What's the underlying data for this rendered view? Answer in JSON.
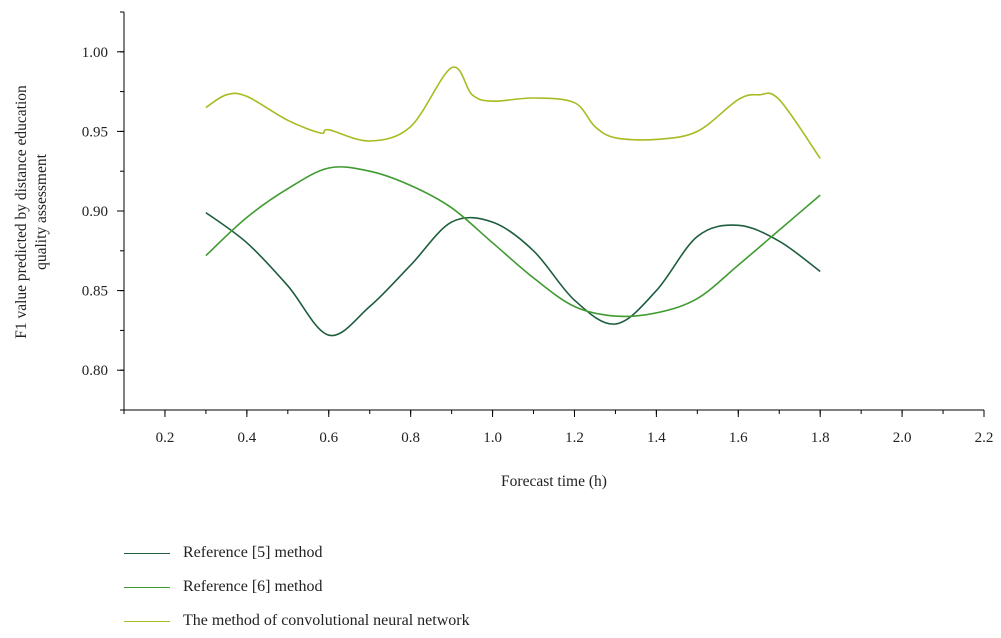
{
  "chart_data": {
    "type": "line",
    "xlabel": "Forecast time (h)",
    "ylabel_lines": [
      "F1 value predicted by distance education",
      "quality assessment"
    ],
    "xlim": [
      0.1,
      2.2
    ],
    "ylim": [
      0.775,
      1.025
    ],
    "xticks": [
      0.2,
      0.4,
      0.6,
      0.8,
      1.0,
      1.2,
      1.4,
      1.6,
      1.8,
      2.0,
      2.2
    ],
    "xtick_labels": [
      "0.2",
      "0.4",
      "0.6",
      "0.8",
      "1.0",
      "1.2",
      "1.4",
      "1.6",
      "1.8",
      "2.0",
      "2.2"
    ],
    "yticks": [
      0.8,
      0.85,
      0.9,
      0.95,
      1.0
    ],
    "ytick_labels": [
      "0.80",
      "0.85",
      "0.90",
      "0.95",
      "1.00"
    ],
    "grid": false,
    "legend_position": "bottom",
    "series": [
      {
        "name": "Reference [5] method",
        "color": "#1e5e3e",
        "points": [
          [
            0.3,
            0.899
          ],
          [
            0.4,
            0.88
          ],
          [
            0.5,
            0.853
          ],
          [
            0.6,
            0.822
          ],
          [
            0.7,
            0.84
          ],
          [
            0.8,
            0.866
          ],
          [
            0.9,
            0.893
          ],
          [
            1.0,
            0.893
          ],
          [
            1.1,
            0.875
          ],
          [
            1.2,
            0.844
          ],
          [
            1.3,
            0.829
          ],
          [
            1.4,
            0.85
          ],
          [
            1.5,
            0.884
          ],
          [
            1.6,
            0.891
          ],
          [
            1.7,
            0.881
          ],
          [
            1.8,
            0.862
          ]
        ]
      },
      {
        "name": "Reference [6] method",
        "color": "#3f9b30",
        "points": [
          [
            0.3,
            0.872
          ],
          [
            0.4,
            0.896
          ],
          [
            0.5,
            0.914
          ],
          [
            0.6,
            0.927
          ],
          [
            0.7,
            0.925
          ],
          [
            0.8,
            0.916
          ],
          [
            0.9,
            0.902
          ],
          [
            1.0,
            0.88
          ],
          [
            1.1,
            0.858
          ],
          [
            1.2,
            0.84
          ],
          [
            1.3,
            0.834
          ],
          [
            1.4,
            0.836
          ],
          [
            1.5,
            0.845
          ],
          [
            1.6,
            0.866
          ],
          [
            1.7,
            0.888
          ],
          [
            1.8,
            0.91
          ]
        ]
      },
      {
        "name": "The method of convolutional neural network",
        "color": "#a9bb22",
        "points": [
          [
            0.3,
            0.965
          ],
          [
            0.35,
            0.973
          ],
          [
            0.4,
            0.972
          ],
          [
            0.5,
            0.957
          ],
          [
            0.58,
            0.949
          ],
          [
            0.6,
            0.951
          ],
          [
            0.7,
            0.944
          ],
          [
            0.8,
            0.953
          ],
          [
            0.9,
            0.99
          ],
          [
            0.95,
            0.973
          ],
          [
            1.0,
            0.969
          ],
          [
            1.1,
            0.971
          ],
          [
            1.2,
            0.968
          ],
          [
            1.25,
            0.953
          ],
          [
            1.3,
            0.946
          ],
          [
            1.4,
            0.945
          ],
          [
            1.5,
            0.95
          ],
          [
            1.6,
            0.97
          ],
          [
            1.65,
            0.973
          ],
          [
            1.7,
            0.97
          ],
          [
            1.8,
            0.933
          ]
        ]
      }
    ]
  }
}
